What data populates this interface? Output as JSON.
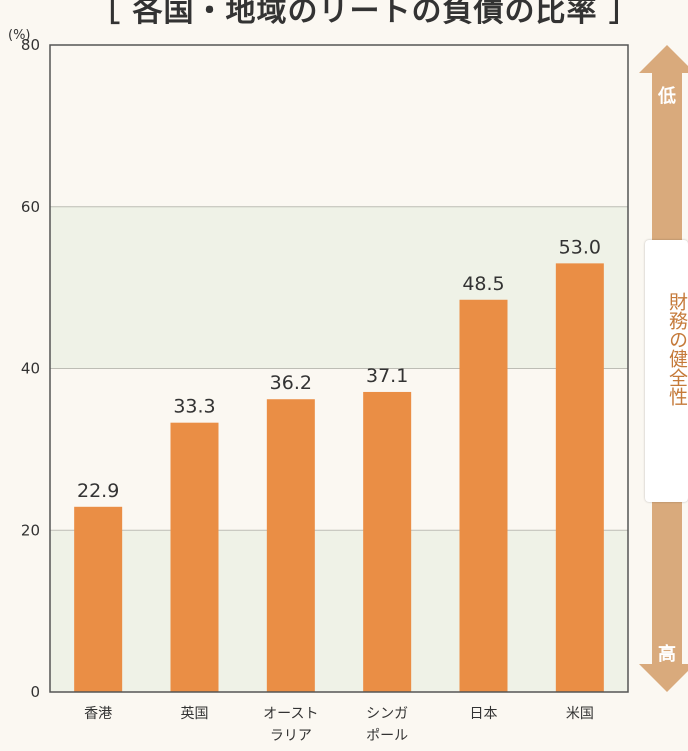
{
  "chart_data": {
    "type": "bar",
    "title": "［ 各国・地域のリートの負債の比率 ］",
    "yunit": "(%)",
    "ylim": [
      0,
      80
    ],
    "yticks": [
      0,
      20,
      40,
      60,
      80
    ],
    "categories": [
      [
        "香港"
      ],
      [
        "英国"
      ],
      [
        "オースト",
        "ラリア"
      ],
      [
        "シンガ",
        "ポール"
      ],
      [
        "日本"
      ],
      [
        "米国"
      ]
    ],
    "values": [
      22.9,
      33.3,
      36.2,
      37.1,
      48.5,
      53.0
    ],
    "value_labels": [
      "22.9",
      "33.3",
      "36.2",
      "37.1",
      "48.5",
      "53.0"
    ],
    "bar_color": "#ea8e45",
    "band_color": "#eff2e7",
    "bands": [
      [
        0,
        20
      ],
      [
        40,
        60
      ]
    ],
    "grid": true,
    "legend": "none"
  },
  "side_scale": {
    "top_label": "低",
    "bottom_label": "高",
    "middle_label": "財務の健全性",
    "arrow_color": "#d9aa7c"
  }
}
